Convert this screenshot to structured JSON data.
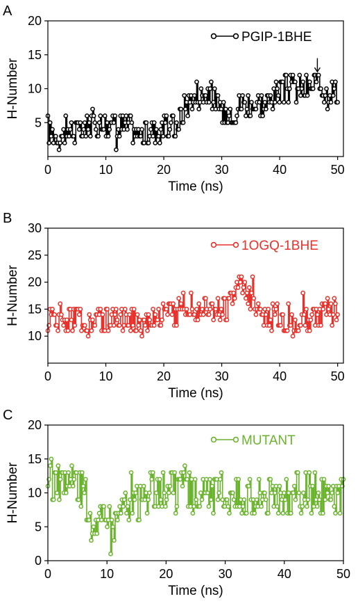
{
  "chart_data": [
    {
      "type": "line",
      "panel": "A",
      "xlabel": "Time (ns)",
      "ylabel": "H-Number",
      "xlim": [
        0,
        51
      ],
      "ylim": [
        0,
        20
      ],
      "xticks": [
        0,
        10,
        20,
        30,
        40,
        50
      ],
      "yticks": [
        5,
        10,
        15,
        20
      ],
      "legend_position": "top-right",
      "series": [
        {
          "name": "PGIP-1BHE",
          "color": "#000000",
          "marker": "open-circle",
          "x": [
            0,
            2,
            4,
            6,
            8,
            10,
            12,
            14,
            16,
            18,
            20,
            22,
            23,
            24,
            26,
            28,
            30,
            32,
            34,
            36,
            38,
            40,
            42,
            44,
            46,
            48,
            50
          ],
          "y": [
            4,
            3,
            4,
            3.5,
            5,
            5,
            4,
            4.5,
            3,
            4,
            4,
            4.5,
            6,
            8,
            9,
            10,
            6,
            7,
            8,
            7.5,
            8,
            9.5,
            10,
            10,
            10.5,
            10,
            9.5
          ],
          "noise": 2,
          "min": 0,
          "max": 17
        }
      ],
      "annotations": [
        {
          "type": "arrow",
          "x": 46.5,
          "y_from": 14.5,
          "y_to": 12.5
        }
      ]
    },
    {
      "type": "line",
      "panel": "B",
      "xlabel": "Time (ns)",
      "ylabel": "H-Number",
      "xlim": [
        0,
        51
      ],
      "ylim": [
        5,
        30
      ],
      "xticks": [
        0,
        10,
        20,
        30,
        40,
        50
      ],
      "yticks": [
        10,
        15,
        20,
        25,
        30
      ],
      "legend_position": "top-right",
      "series": [
        {
          "name": "1OGQ-1BHE",
          "color": "#e8312a",
          "marker": "open-circle",
          "x": [
            0,
            2,
            4,
            6,
            8,
            10,
            12,
            14,
            16,
            18,
            20,
            22,
            24,
            26,
            28,
            30,
            32,
            33,
            34,
            36,
            38,
            40,
            42,
            44,
            46,
            48,
            50
          ],
          "y": [
            13,
            13.5,
            13,
            13,
            12.5,
            13,
            13,
            13.5,
            12.5,
            13.5,
            14,
            14.5,
            16,
            15.5,
            16,
            14.5,
            17,
            20,
            19.5,
            14,
            14,
            13,
            13.5,
            13,
            13.5,
            14,
            15
          ],
          "noise": 2.5,
          "min": 6,
          "max": 23
        }
      ]
    },
    {
      "type": "line",
      "panel": "C",
      "xlabel": "Time (ns)",
      "ylabel": "H-Number",
      "xlim": [
        0,
        50
      ],
      "ylim": [
        0,
        20
      ],
      "xticks": [
        0,
        10,
        20,
        30,
        40,
        50
      ],
      "yticks": [
        0,
        5,
        10,
        15,
        20
      ],
      "legend_position": "top-right",
      "series": [
        {
          "name": "MUTANT",
          "color": "#6ab42d",
          "marker": "open-circle",
          "x": [
            0,
            2,
            4,
            6,
            7,
            8,
            10,
            11,
            12,
            14,
            16,
            18,
            20,
            22,
            24,
            26,
            28,
            30,
            32,
            34,
            36,
            38,
            40,
            42,
            44,
            46,
            48,
            50
          ],
          "y": [
            12,
            11,
            11,
            10,
            7.5,
            6.5,
            5.5,
            5,
            7,
            8.5,
            9,
            10,
            10.5,
            10,
            10,
            9.5,
            9.5,
            10,
            9.5,
            9.5,
            10,
            9.5,
            9.5,
            10,
            10,
            9.5,
            9.5,
            9.5
          ],
          "noise": 3,
          "min": 1,
          "max": 18
        }
      ]
    }
  ]
}
